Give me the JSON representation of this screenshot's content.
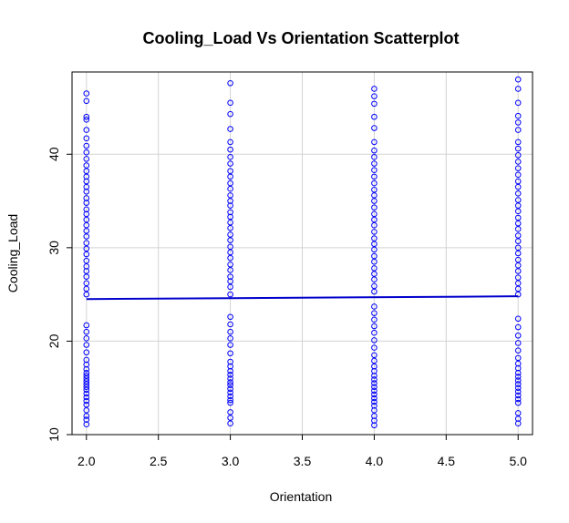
{
  "chart_data": {
    "type": "scatter",
    "title": "Cooling_Load Vs Orientation Scatterplot",
    "xlabel": "Orientation",
    "ylabel": "Cooling_Load",
    "xlim": [
      1.9,
      5.1
    ],
    "ylim": [
      10.0,
      48.8
    ],
    "xticks": [
      "2.0",
      "2.5",
      "3.0",
      "3.5",
      "4.0",
      "4.5",
      "5.0"
    ],
    "yticks": [
      "10",
      "20",
      "30",
      "40"
    ],
    "grid": true,
    "point_color": "#0000ff",
    "line_color": "#0000cc",
    "regression_line": {
      "x": [
        2.0,
        5.0
      ],
      "y": [
        24.5,
        24.8
      ]
    },
    "series": [
      {
        "x": 2.0,
        "y": [
          46.5,
          45.7,
          44.0,
          43.7,
          42.6,
          41.7,
          40.9,
          40.2,
          39.5,
          38.8,
          38.2,
          37.6,
          37.1,
          36.5,
          36.0,
          35.3,
          34.8,
          34.1,
          33.6,
          33.0,
          32.4,
          31.8,
          31.2,
          30.5,
          29.9,
          29.3,
          28.6,
          28.0,
          27.5,
          26.9,
          26.2,
          25.6,
          25.0,
          21.7,
          21.0,
          20.3,
          19.6,
          18.8,
          18.0,
          17.5,
          17.0,
          16.6,
          16.3,
          16.0,
          15.7,
          15.4,
          15.1,
          14.8,
          14.4,
          14.0,
          13.6,
          13.2,
          12.6,
          12.0,
          11.6,
          11.1
        ]
      },
      {
        "x": 3.0,
        "y": [
          47.6,
          45.5,
          44.3,
          42.7,
          41.3,
          40.5,
          39.7,
          39.0,
          38.2,
          37.6,
          36.9,
          36.3,
          35.6,
          35.0,
          34.5,
          33.8,
          33.3,
          32.7,
          32.1,
          31.4,
          30.8,
          30.1,
          29.5,
          28.9,
          28.2,
          27.6,
          26.9,
          26.4,
          25.8,
          25.0,
          22.6,
          21.8,
          21.0,
          20.3,
          19.6,
          18.7,
          17.8,
          17.3,
          16.8,
          16.4,
          16.0,
          15.6,
          15.3,
          14.9,
          14.5,
          14.1,
          13.7,
          13.4,
          12.4,
          11.8,
          11.2
        ]
      },
      {
        "x": 4.0,
        "y": [
          47.0,
          46.2,
          45.4,
          44.0,
          42.8,
          41.3,
          40.4,
          39.7,
          39.0,
          38.3,
          37.6,
          36.9,
          36.2,
          35.6,
          35.0,
          34.3,
          33.6,
          33.0,
          32.4,
          31.7,
          31.0,
          30.4,
          29.8,
          29.1,
          28.5,
          27.8,
          27.2,
          26.6,
          25.9,
          25.3,
          23.7,
          23.0,
          22.3,
          21.6,
          20.9,
          20.1,
          19.3,
          18.5,
          17.9,
          17.3,
          16.8,
          16.3,
          15.9,
          15.5,
          15.1,
          14.7,
          14.3,
          13.9,
          13.5,
          13.1,
          12.6,
          12.0,
          11.5,
          11.0
        ]
      },
      {
        "x": 5.0,
        "y": [
          48.0,
          47.0,
          45.5,
          44.1,
          43.4,
          42.6,
          41.3,
          40.6,
          39.9,
          39.2,
          38.5,
          37.8,
          37.1,
          36.5,
          35.8,
          35.1,
          34.5,
          33.9,
          33.2,
          32.6,
          32.0,
          31.3,
          30.7,
          30.0,
          29.4,
          28.7,
          28.1,
          27.5,
          26.8,
          26.2,
          25.6,
          25.0,
          22.4,
          21.5,
          20.6,
          19.8,
          19.0,
          18.2,
          17.6,
          17.1,
          16.6,
          16.2,
          15.8,
          15.4,
          15.0,
          14.6,
          14.2,
          13.8,
          13.4,
          12.3,
          11.7,
          11.2
        ]
      }
    ]
  }
}
